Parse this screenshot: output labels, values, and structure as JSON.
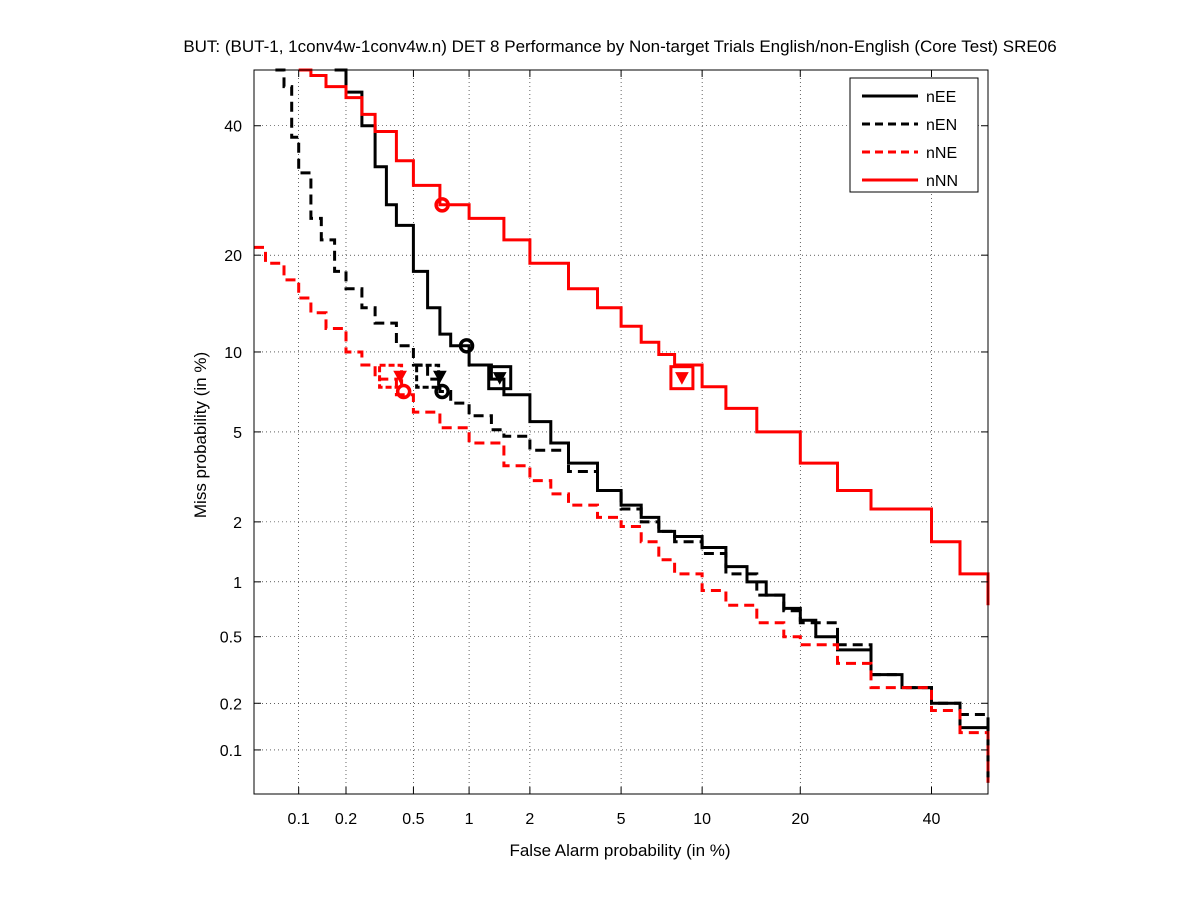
{
  "chart_data": {
    "type": "line",
    "title": "BUT: (BUT-1, 1conv4w-1conv4w.n) DET 8 Performance by Non-target Trials English/non-English (Core Test) SRE06",
    "xlabel": "False Alarm probability (in %)",
    "ylabel": "Miss probability (in %)",
    "xscale": "probit",
    "yscale": "probit",
    "xlim": [
      0.05,
      50
    ],
    "ylim": [
      0.05,
      50
    ],
    "xticks": [
      0.1,
      0.2,
      0.5,
      1,
      2,
      5,
      10,
      20,
      40
    ],
    "xtick_labels": [
      "0.1",
      "0.2",
      "0.5",
      "1",
      "2",
      "5",
      "10",
      "20",
      "40"
    ],
    "yticks": [
      0.1,
      0.2,
      0.5,
      1,
      2,
      5,
      10,
      20,
      40
    ],
    "ytick_labels": [
      "0.1",
      "0.2",
      "0.5",
      "1",
      "2",
      "5",
      "10",
      "20",
      "40"
    ],
    "grid": true,
    "legend_position": "top-right",
    "series": [
      {
        "name": "nEE",
        "color": "#000000",
        "dash": "solid",
        "x": [
          0.17,
          0.2,
          0.25,
          0.3,
          0.35,
          0.4,
          0.5,
          0.6,
          0.7,
          0.8,
          1.0,
          1.3,
          1.5,
          2.0,
          2.5,
          3.0,
          4.0,
          5.0,
          6.0,
          7.0,
          8.0,
          10.0,
          12.0,
          14.0,
          16.0,
          18.0,
          20.0,
          22.0,
          25.0,
          30.0,
          35.0,
          40.0,
          45.0,
          50.0
        ],
        "y": [
          50,
          46,
          40,
          33,
          27,
          24,
          18,
          14,
          11.5,
          10.5,
          9,
          8,
          7,
          5.5,
          4.5,
          3.7,
          2.8,
          2.4,
          2.1,
          1.8,
          1.7,
          1.5,
          1.2,
          1.0,
          0.85,
          0.72,
          0.62,
          0.5,
          0.42,
          0.3,
          0.25,
          0.2,
          0.14,
          0.06
        ]
      },
      {
        "name": "nEN",
        "color": "#000000",
        "dash": "dashed",
        "x": [
          0.07,
          0.08,
          0.09,
          0.1,
          0.12,
          0.14,
          0.17,
          0.2,
          0.25,
          0.3,
          0.4,
          0.5,
          0.6,
          0.7,
          0.8,
          1.0,
          1.3,
          1.5,
          2.0,
          3.0,
          4.0,
          5.0,
          6.0,
          7.0,
          8.0,
          10.0,
          12.0,
          15.0,
          18.0,
          20.0,
          25.0,
          30.0,
          35.0,
          40.0,
          45.0,
          50.0
        ],
        "y": [
          50,
          47,
          38,
          32,
          25,
          22,
          18,
          16,
          14,
          12.5,
          10.5,
          9,
          8,
          7.2,
          6.5,
          5.8,
          5.1,
          4.8,
          4.2,
          3.4,
          2.8,
          2.3,
          2.0,
          1.8,
          1.6,
          1.4,
          1.1,
          0.85,
          0.7,
          0.6,
          0.45,
          0.3,
          0.25,
          0.2,
          0.17,
          0.06
        ]
      },
      {
        "name": "nNE",
        "color": "#ff0000",
        "dash": "dashed",
        "x": [
          0.05,
          0.06,
          0.08,
          0.1,
          0.12,
          0.15,
          0.2,
          0.25,
          0.3,
          0.4,
          0.5,
          0.7,
          1.0,
          1.5,
          2.0,
          2.5,
          3.0,
          4.0,
          5.0,
          6.0,
          7.0,
          8.0,
          10.0,
          12.0,
          15.0,
          18.0,
          20.0,
          25.0,
          30.0,
          40.0,
          45.0,
          50.0
        ],
        "y": [
          21,
          19,
          17,
          15,
          13.5,
          12,
          10,
          9,
          8,
          7,
          6,
          5.2,
          4.5,
          3.6,
          3.1,
          2.7,
          2.4,
          2.1,
          1.9,
          1.6,
          1.3,
          1.1,
          0.9,
          0.75,
          0.6,
          0.5,
          0.45,
          0.35,
          0.25,
          0.18,
          0.13,
          0.06
        ]
      },
      {
        "name": "nNN",
        "color": "#ff0000",
        "dash": "solid",
        "x": [
          0.1,
          0.12,
          0.15,
          0.2,
          0.25,
          0.3,
          0.4,
          0.5,
          0.7,
          1.0,
          1.5,
          2.0,
          3.0,
          4.0,
          5.0,
          6.0,
          7.0,
          8.0,
          10.0,
          12.0,
          15.0,
          20.0,
          25.0,
          30.0,
          40.0,
          45.0,
          50.0
        ],
        "y": [
          50,
          49,
          47,
          45,
          42,
          39,
          34,
          30,
          27,
          25,
          22,
          19,
          16,
          14,
          12.2,
          10.8,
          9.8,
          9,
          7.5,
          6.2,
          5,
          3.7,
          2.8,
          2.3,
          1.6,
          1.1,
          0.75
        ]
      }
    ],
    "markers": [
      {
        "series": "nEE",
        "kind": "circle",
        "x": 0.97,
        "y": 10.5
      },
      {
        "series": "nEE",
        "kind": "triangle",
        "x": 1.43,
        "y": 8.1
      },
      {
        "series": "nEE",
        "kind": "square",
        "x": 1.43,
        "y": 8.1
      },
      {
        "series": "nEN",
        "kind": "circle",
        "x": 0.72,
        "y": 7.2
      },
      {
        "series": "nEN",
        "kind": "triangle",
        "x": 0.7,
        "y": 8.2
      },
      {
        "series": "nEN",
        "kind": "square",
        "x": 0.6,
        "y": 8.2
      },
      {
        "series": "nNE",
        "kind": "circle",
        "x": 0.44,
        "y": 7.2
      },
      {
        "series": "nNE",
        "kind": "triangle",
        "x": 0.42,
        "y": 8.2
      },
      {
        "series": "nNE",
        "kind": "square",
        "x": 0.37,
        "y": 8.2
      },
      {
        "series": "nNN",
        "kind": "circle",
        "x": 0.72,
        "y": 27
      },
      {
        "series": "nNN",
        "kind": "triangle",
        "x": 8.5,
        "y": 8.1
      },
      {
        "series": "nNN",
        "kind": "square",
        "x": 8.5,
        "y": 8.1
      }
    ]
  }
}
